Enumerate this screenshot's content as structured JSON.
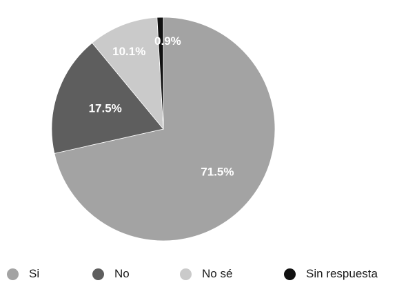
{
  "chart_data": {
    "type": "pie",
    "title": "",
    "categories": [
      "Si",
      "No",
      "No sé",
      "Sin respuesta"
    ],
    "values": [
      71.5,
      17.5,
      10.1,
      0.9
    ],
    "value_labels": [
      "71.5%",
      "17.5%",
      "10.1%",
      "0.9%"
    ],
    "colors": [
      "#a3a3a3",
      "#5e5e5e",
      "#cacaca",
      "#111111"
    ],
    "label_color": "#ffffff",
    "start_angle": "top (12 o'clock), clockwise",
    "legend_position": "bottom"
  }
}
